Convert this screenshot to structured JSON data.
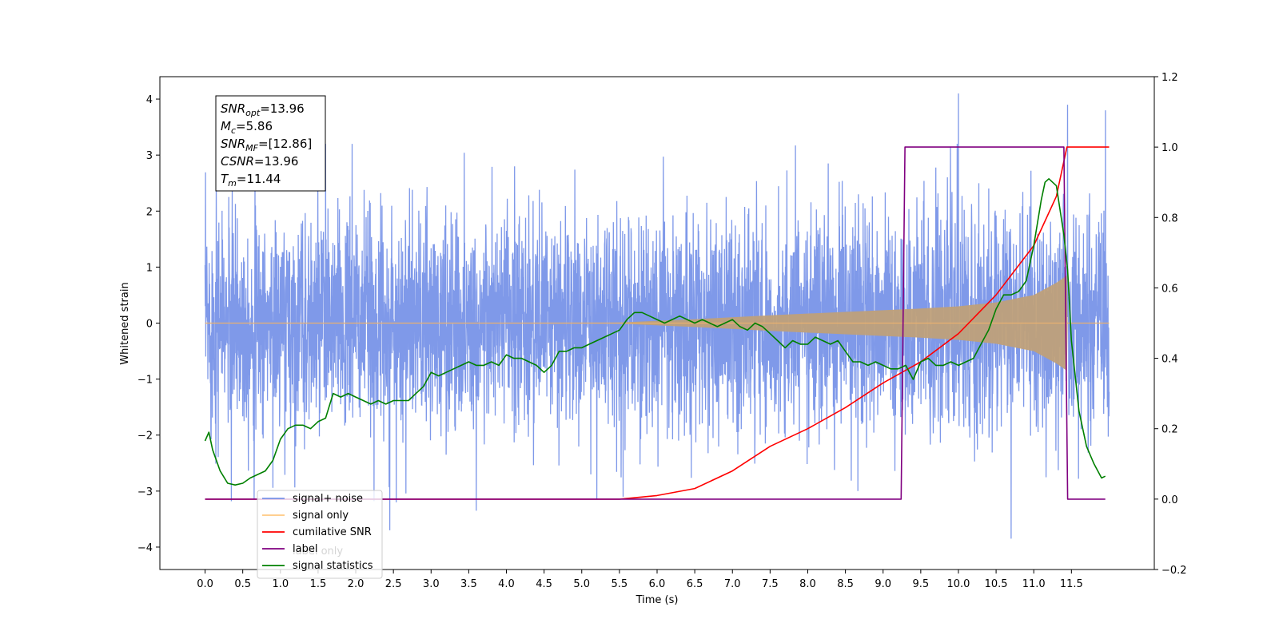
{
  "chart_data": {
    "type": "line",
    "title": "",
    "xlabel": "Time (s)",
    "ylabel": "Whitened strain",
    "y2label": "",
    "xlim": [
      -0.6,
      12.6
    ],
    "ylim": [
      -4.4,
      4.4
    ],
    "y2lim": [
      -0.2,
      1.2
    ],
    "grid": false,
    "legend_position": "lower-left",
    "x_ticks": [
      0.0,
      0.5,
      1.0,
      1.5,
      2.0,
      2.5,
      3.0,
      3.5,
      4.0,
      4.5,
      5.0,
      5.5,
      6.0,
      6.5,
      7.0,
      7.5,
      8.0,
      8.5,
      9.0,
      9.5,
      10.0,
      10.5,
      11.0,
      11.5
    ],
    "x_tick_labels": [
      "0.0",
      "0.5",
      "1.0",
      "1.5",
      "2.0",
      "2.5",
      "3.0",
      "3.5",
      "4.0",
      "4.5",
      "5.0",
      "5.5",
      "6.0",
      "6.5",
      "7.0",
      "7.5",
      "8.0",
      "8.5",
      "9.0",
      "9.5",
      "10.0",
      "10.5",
      "11.0",
      "11.5"
    ],
    "y_ticks": [
      -4,
      -3,
      -2,
      -1,
      0,
      1,
      2,
      3,
      4
    ],
    "y_tick_labels": [
      "−4",
      "−3",
      "−2",
      "−1",
      "0",
      "1",
      "2",
      "3",
      "4"
    ],
    "y2_ticks": [
      -0.2,
      0.0,
      0.2,
      0.4,
      0.6,
      0.8,
      1.0,
      1.2
    ],
    "y2_tick_labels": [
      "−0.2",
      "0.0",
      "0.2",
      "0.4",
      "0.6",
      "0.8",
      "1.0",
      "1.2"
    ],
    "stats_box": [
      {
        "sym": "SNR",
        "sub": "opt",
        "value": "=13.96"
      },
      {
        "sym": "M",
        "sub": "c",
        "value": "=5.86"
      },
      {
        "sym": "SNR",
        "sub": "MF",
        "value": "=[12.86]"
      },
      {
        "sym": "CSNR",
        "sub": "",
        "value": "=13.96"
      },
      {
        "sym": "T",
        "sub": "m",
        "value": "=11.44"
      }
    ],
    "series": [
      {
        "name": "signal+ noise",
        "color": "#7893e8",
        "axis": "left",
        "x_range": [
          0.0,
          12.0
        ],
        "envelope_typical": [
          -1.5,
          1.5
        ],
        "extremes": [
          {
            "x": 0.15,
            "y": 2.85
          },
          {
            "x": 0.35,
            "y": -3.18
          },
          {
            "x": 0.65,
            "y": -3.15
          },
          {
            "x": 1.6,
            "y": 3.2
          },
          {
            "x": 1.95,
            "y": 3.2
          },
          {
            "x": 2.45,
            "y": -3.7
          },
          {
            "x": 3.6,
            "y": -3.35
          },
          {
            "x": 5.2,
            "y": -3.15
          },
          {
            "x": 5.55,
            "y": -3.1
          },
          {
            "x": 10.0,
            "y": 4.1
          },
          {
            "x": 10.7,
            "y": -3.85
          },
          {
            "x": 11.45,
            "y": 3.9
          },
          {
            "x": 11.95,
            "y": 3.8
          }
        ]
      },
      {
        "name": "signal only",
        "color": "#e8a860",
        "axis": "left",
        "x_range": [
          0.0,
          12.0
        ],
        "amplitude_envelope": [
          [
            0.0,
            0.0
          ],
          [
            5.5,
            0.01
          ],
          [
            6.5,
            0.07
          ],
          [
            7.5,
            0.14
          ],
          [
            8.5,
            0.2
          ],
          [
            9.5,
            0.26
          ],
          [
            10.0,
            0.3
          ],
          [
            10.5,
            0.37
          ],
          [
            11.0,
            0.5
          ],
          [
            11.3,
            0.72
          ],
          [
            11.44,
            0.85
          ],
          [
            11.45,
            0.0
          ],
          [
            12.0,
            0.0
          ]
        ]
      },
      {
        "name": "cumilative SNR",
        "color": "#ff0000",
        "axis": "right",
        "x": [
          0.0,
          5.5,
          6.0,
          6.5,
          7.0,
          7.5,
          8.0,
          8.5,
          9.0,
          9.5,
          10.0,
          10.5,
          11.0,
          11.3,
          11.44,
          12.0
        ],
        "y": [
          0.0,
          0.0,
          0.01,
          0.03,
          0.08,
          0.15,
          0.2,
          0.26,
          0.33,
          0.39,
          0.47,
          0.58,
          0.72,
          0.86,
          1.0,
          1.0
        ]
      },
      {
        "name": "label",
        "color": "#800080",
        "axis": "right",
        "x": [
          0.0,
          9.24,
          9.29,
          11.4,
          11.45,
          11.95
        ],
        "y": [
          0.0,
          0.0,
          1.0,
          1.0,
          0.0,
          0.0
        ]
      },
      {
        "name": "signal statistics",
        "color": "#008000",
        "axis": "right",
        "x": [
          0.0,
          0.05,
          0.1,
          0.2,
          0.3,
          0.4,
          0.5,
          0.6,
          0.7,
          0.8,
          0.9,
          1.0,
          1.1,
          1.2,
          1.3,
          1.4,
          1.5,
          1.6,
          1.7,
          1.8,
          1.9,
          2.0,
          2.1,
          2.2,
          2.3,
          2.4,
          2.5,
          2.6,
          2.7,
          2.8,
          2.9,
          3.0,
          3.1,
          3.2,
          3.3,
          3.4,
          3.5,
          3.6,
          3.7,
          3.8,
          3.9,
          4.0,
          4.1,
          4.2,
          4.3,
          4.4,
          4.5,
          4.6,
          4.7,
          4.8,
          4.9,
          5.0,
          5.1,
          5.2,
          5.3,
          5.4,
          5.5,
          5.6,
          5.7,
          5.8,
          5.9,
          6.0,
          6.1,
          6.2,
          6.3,
          6.4,
          6.5,
          6.6,
          6.7,
          6.8,
          6.9,
          7.0,
          7.1,
          7.2,
          7.3,
          7.4,
          7.5,
          7.6,
          7.7,
          7.8,
          7.9,
          8.0,
          8.1,
          8.2,
          8.3,
          8.4,
          8.5,
          8.6,
          8.7,
          8.8,
          8.9,
          9.0,
          9.1,
          9.2,
          9.3,
          9.4,
          9.5,
          9.6,
          9.7,
          9.8,
          9.9,
          10.0,
          10.1,
          10.2,
          10.3,
          10.4,
          10.5,
          10.6,
          10.7,
          10.8,
          10.9,
          11.0,
          11.1,
          11.15,
          11.2,
          11.3,
          11.4,
          11.45,
          11.5,
          11.6,
          11.7,
          11.8,
          11.9,
          11.95
        ],
        "y": [
          0.165,
          0.19,
          0.14,
          0.08,
          0.045,
          0.04,
          0.045,
          0.06,
          0.07,
          0.08,
          0.11,
          0.17,
          0.2,
          0.21,
          0.21,
          0.2,
          0.22,
          0.23,
          0.3,
          0.29,
          0.3,
          0.29,
          0.28,
          0.27,
          0.28,
          0.27,
          0.28,
          0.28,
          0.28,
          0.3,
          0.32,
          0.36,
          0.35,
          0.36,
          0.37,
          0.38,
          0.39,
          0.38,
          0.38,
          0.39,
          0.38,
          0.41,
          0.4,
          0.4,
          0.39,
          0.38,
          0.36,
          0.38,
          0.42,
          0.42,
          0.43,
          0.43,
          0.44,
          0.45,
          0.46,
          0.47,
          0.48,
          0.51,
          0.53,
          0.53,
          0.52,
          0.51,
          0.5,
          0.51,
          0.52,
          0.51,
          0.5,
          0.51,
          0.5,
          0.49,
          0.5,
          0.51,
          0.49,
          0.48,
          0.5,
          0.49,
          0.47,
          0.45,
          0.43,
          0.45,
          0.44,
          0.44,
          0.46,
          0.45,
          0.44,
          0.45,
          0.42,
          0.39,
          0.39,
          0.38,
          0.39,
          0.38,
          0.37,
          0.37,
          0.38,
          0.34,
          0.39,
          0.4,
          0.38,
          0.38,
          0.39,
          0.38,
          0.39,
          0.4,
          0.44,
          0.48,
          0.54,
          0.58,
          0.58,
          0.59,
          0.62,
          0.72,
          0.85,
          0.9,
          0.91,
          0.89,
          0.75,
          0.65,
          0.45,
          0.25,
          0.15,
          0.1,
          0.06,
          0.065
        ]
      }
    ],
    "legend": [
      {
        "label": "signal+ noise",
        "color": "#7893e8"
      },
      {
        "label": "signal only",
        "color": "#ffc880"
      },
      {
        "label": "cumilative SNR",
        "color": "#ff0000"
      },
      {
        "label": "label",
        "color": "#800080"
      },
      {
        "label": "signal statistics",
        "color": "#008000"
      }
    ],
    "legend_hidden_text": [
      "label only"
    ]
  }
}
